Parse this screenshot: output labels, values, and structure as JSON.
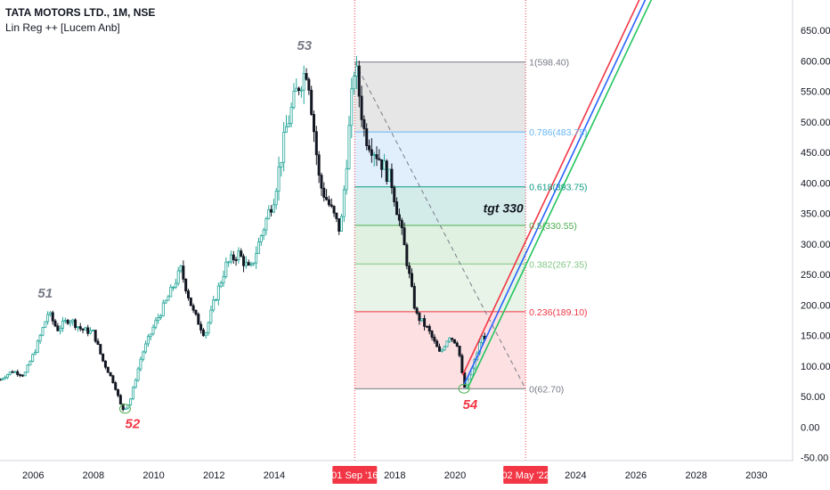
{
  "legend": {
    "symbol": "TATA MOTORS LTD., 1M, NSE",
    "indicator": "Lin Reg ++ [Lucem Anb]"
  },
  "chart_data": {
    "type": "candlestick",
    "x_axis": {
      "range": [
        2004.9,
        2031.2
      ],
      "ticks": [
        "2006",
        "2008",
        "2010",
        "2012",
        "2014",
        "2018",
        "2020",
        "2024",
        "2026",
        "2028",
        "2030"
      ]
    },
    "y_axis": {
      "range": [
        -55,
        700
      ],
      "ticks": [
        "650.00",
        "600.00",
        "550.00",
        "500.00",
        "450.00",
        "400.00",
        "350.00",
        "300.00",
        "250.00",
        "200.00",
        "150.00",
        "100.00",
        "50.00",
        "0.00",
        "-50.00"
      ]
    },
    "price_path": [
      [
        2004.9,
        78
      ],
      [
        2005.3,
        92
      ],
      [
        2005.7,
        85
      ],
      [
        2006.1,
        130
      ],
      [
        2006.5,
        188
      ],
      [
        2006.8,
        160
      ],
      [
        2007.2,
        178
      ],
      [
        2007.6,
        160
      ],
      [
        2008.0,
        155
      ],
      [
        2008.3,
        110
      ],
      [
        2008.7,
        70
      ],
      [
        2008.95,
        28
      ],
      [
        2009.2,
        40
      ],
      [
        2009.6,
        118
      ],
      [
        2010.0,
        165
      ],
      [
        2010.5,
        215
      ],
      [
        2010.9,
        258
      ],
      [
        2011.3,
        190
      ],
      [
        2011.7,
        150
      ],
      [
        2012.0,
        205
      ],
      [
        2012.4,
        265
      ],
      [
        2012.8,
        285
      ],
      [
        2013.2,
        255
      ],
      [
        2013.6,
        320
      ],
      [
        2014.0,
        380
      ],
      [
        2014.4,
        490
      ],
      [
        2014.8,
        560
      ],
      [
        2015.1,
        590
      ],
      [
        2015.5,
        400
      ],
      [
        2015.9,
        355
      ],
      [
        2016.2,
        320
      ],
      [
        2016.67,
        598
      ],
      [
        2017.0,
        480
      ],
      [
        2017.5,
        440
      ],
      [
        2017.9,
        400
      ],
      [
        2018.3,
        300
      ],
      [
        2018.7,
        185
      ],
      [
        2019.1,
        160
      ],
      [
        2019.5,
        120
      ],
      [
        2019.8,
        150
      ],
      [
        2020.1,
        135
      ],
      [
        2020.3,
        63
      ],
      [
        2020.6,
        100
      ],
      [
        2020.9,
        150
      ],
      [
        2021.0,
        140
      ]
    ],
    "annotations": [
      {
        "text": "51",
        "x": 2006.4,
        "y": 212,
        "color": "#787b86"
      },
      {
        "text": "52",
        "x": 2009.3,
        "y": -2,
        "color": "#f23645"
      },
      {
        "text": "53",
        "x": 2015.0,
        "y": 618,
        "color": "#787b86"
      },
      {
        "text": "54",
        "x": 2020.5,
        "y": 30,
        "color": "#f23645"
      },
      {
        "text": "tgt 330",
        "x": 2021.6,
        "y": 352,
        "color": "#131722"
      }
    ],
    "fibonacci": {
      "x_start": 2016.67,
      "x_end": 2022.34,
      "levels": [
        {
          "label": "1(598.40)",
          "value": 598.4,
          "color": "#787b86",
          "fill": "#e6e6e6"
        },
        {
          "label": "0.786(483.75)",
          "value": 483.75,
          "color": "#64b5f6",
          "fill": "#e1effd"
        },
        {
          "label": "0.618(393.75)",
          "value": 393.75,
          "color": "#089981",
          "fill": "#d4ece9"
        },
        {
          "label": "0.5(330.55)",
          "value": 330.55,
          "color": "#4caf50",
          "fill": "#e1f1e1"
        },
        {
          "label": "0.382(267.35)",
          "value": 267.35,
          "color": "#81c784",
          "fill": "#e7f4e7"
        },
        {
          "label": "0.236(189.10)",
          "value": 189.1,
          "color": "#f23645",
          "fill": "#fde0e2"
        },
        {
          "label": "0(62.70)",
          "value": 62.7,
          "color": "#787b86",
          "fill": null
        }
      ]
    },
    "vertical_markers": [
      {
        "x": 2016.67,
        "label": "01 Sep '16"
      },
      {
        "x": 2022.34,
        "label": "02 May '22"
      }
    ],
    "regression_lines": [
      {
        "color": "#f23645",
        "from": [
          2020.25,
          85
        ],
        "to": [
          2026.3,
          720
        ]
      },
      {
        "color": "#2962ff",
        "from": [
          2020.3,
          70
        ],
        "to": [
          2026.5,
          720
        ]
      },
      {
        "color": "#22c55e",
        "from": [
          2020.4,
          62
        ],
        "to": [
          2026.7,
          720
        ]
      }
    ],
    "diagonal": {
      "from": [
        2016.67,
        598.4
      ],
      "to": [
        2022.34,
        62.7
      ],
      "color": "#787b86"
    }
  }
}
